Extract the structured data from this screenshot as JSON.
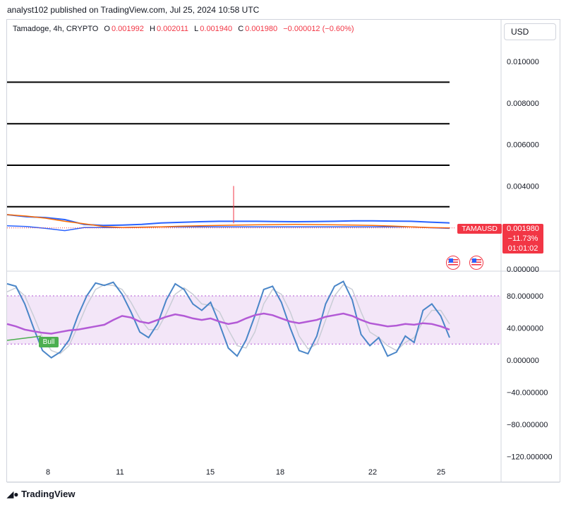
{
  "publisher": "analyst102 published on TradingView.com, Jul 25, 2024 10:58 UTC",
  "legend": {
    "symbol": "Tamadoge, 4h, CRYPTO",
    "open_k": "O",
    "open_v": "0.001992",
    "high_k": "H",
    "high_v": "0.002011",
    "low_k": "L",
    "low_v": "0.001940",
    "close_k": "C",
    "close_v": "0.001980",
    "change": "−0.000012 (−0.60%)"
  },
  "currency": "USD",
  "price_tag": {
    "ticker": "TAMAUSD",
    "price": "0.001980",
    "change_pct": "−11.73%",
    "countdown": "01:01:02"
  },
  "stoch_signal": "Bull",
  "logo_text": "TradingView",
  "colors": {
    "bear_red": "#f23645",
    "bull_green": "#4caf50",
    "stoch_k": "#4a86c8",
    "stoch_d": "#c9cdd6",
    "rsi": "#b35ad6",
    "band_fill": "#f3e6f8",
    "level_line": "#000000",
    "bb_upper": "#2962ff",
    "ma": "#ff6d00"
  },
  "chart_data": [
    {
      "type": "line",
      "name": "Tamadoge 4h price",
      "x_ticks": [
        "8",
        "11",
        "15",
        "18",
        "22",
        "25"
      ],
      "y_ticks": [
        "0.010000",
        "0.008000",
        "0.006000",
        "0.004000",
        "0.000000"
      ],
      "ylim": [
        0,
        0.0102
      ],
      "horizontal_levels": [
        0.009,
        0.007,
        0.005,
        0.003
      ],
      "close": [
        0.00262,
        0.00255,
        0.00245,
        0.0023,
        0.00218,
        0.00205,
        0.002,
        0.00201,
        0.00203,
        0.00206,
        0.00208,
        0.0021,
        0.00212,
        0.00213,
        0.00214,
        0.00215,
        0.00214,
        0.00213,
        0.00212,
        0.0021,
        0.00207,
        0.00203,
        0.002,
        0.00198
      ],
      "bb_upper": [
        0.00262,
        0.00252,
        0.00248,
        0.00238,
        0.00215,
        0.0021,
        0.00212,
        0.00215,
        0.00222,
        0.00225,
        0.00228,
        0.0023,
        0.0023,
        0.0023,
        0.00229,
        0.00228,
        0.00229,
        0.0023,
        0.00232,
        0.00232,
        0.00231,
        0.0023,
        0.00226,
        0.00222
      ],
      "bb_lower": [
        0.00208,
        0.00205,
        0.00196,
        0.00185,
        0.002,
        0.002,
        0.002,
        0.00202,
        0.00203,
        0.00203,
        0.00203,
        0.00203,
        0.00203,
        0.00203,
        0.00203,
        0.00203,
        0.00203,
        0.00203,
        0.00203,
        0.00203,
        0.00203,
        0.00203,
        0.00199,
        0.00196
      ],
      "spike_high": 0.004,
      "last_price": 0.00198
    },
    {
      "type": "line",
      "name": "Stochastic RSI",
      "y_ticks": [
        "80.000000",
        "40.000000",
        "0.000000",
        "−40.000000",
        "−80.000000",
        "−120.000000"
      ],
      "ylim": [
        -128,
        110
      ],
      "band": [
        20,
        80
      ],
      "k": [
        95,
        92,
        70,
        40,
        12,
        3,
        10,
        25,
        55,
        80,
        96,
        93,
        97,
        82,
        60,
        35,
        28,
        45,
        75,
        95,
        88,
        70,
        62,
        72,
        45,
        15,
        5,
        25,
        55,
        88,
        92,
        72,
        40,
        12,
        8,
        30,
        70,
        92,
        98,
        75,
        32,
        18,
        28,
        5,
        10,
        30,
        22,
        62,
        70,
        55,
        28
      ],
      "d": [
        85,
        90,
        80,
        55,
        28,
        12,
        8,
        18,
        42,
        68,
        88,
        94,
        93,
        88,
        72,
        52,
        38,
        38,
        58,
        82,
        90,
        82,
        70,
        68,
        60,
        38,
        18,
        15,
        35,
        70,
        88,
        82,
        60,
        30,
        14,
        20,
        50,
        80,
        94,
        88,
        60,
        35,
        28,
        18,
        12,
        22,
        28,
        48,
        62,
        62,
        45
      ],
      "rsi": [
        45,
        42,
        38,
        36,
        34,
        33,
        35,
        37,
        38,
        40,
        42,
        44,
        50,
        55,
        53,
        48,
        46,
        50,
        54,
        57,
        55,
        52,
        50,
        52,
        48,
        45,
        47,
        52,
        56,
        58,
        56,
        52,
        48,
        46,
        48,
        50,
        54,
        56,
        58,
        55,
        50,
        46,
        44,
        42,
        43,
        45,
        44,
        46,
        45,
        42,
        38
      ]
    }
  ]
}
